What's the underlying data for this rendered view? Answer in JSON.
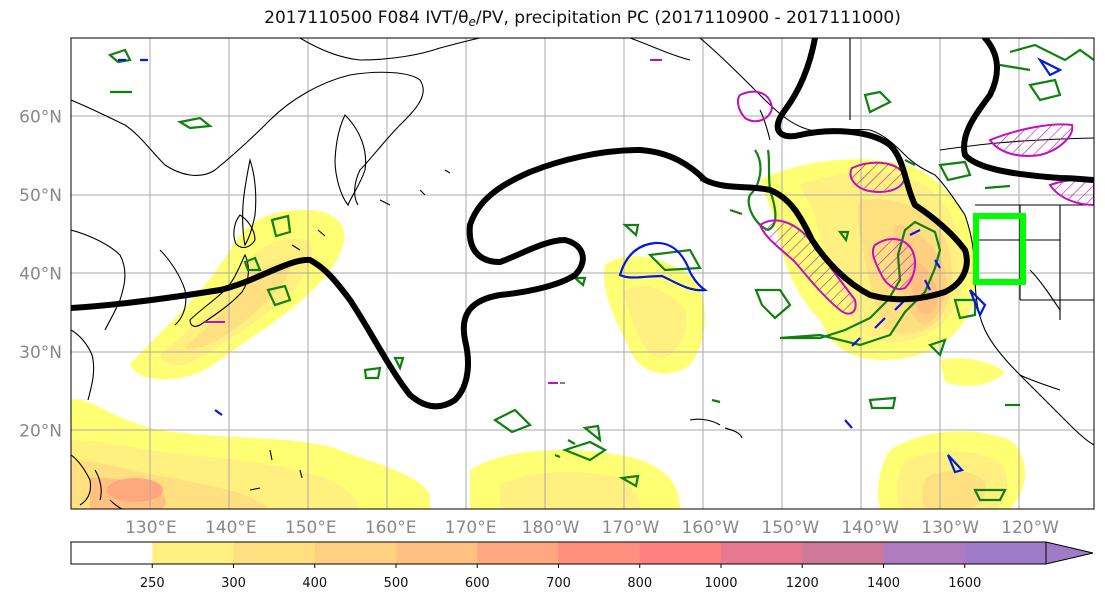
{
  "title": {
    "prefix": "2017110500 F084 IVT/θ",
    "subscript": "e",
    "suffix": "/PV, precipitation PC (2017110900 - 2017111000)"
  },
  "axes": {
    "lat_labels": [
      "60°N",
      "50°N",
      "40°N",
      "30°N",
      "20°N"
    ],
    "lat_values": [
      60,
      50,
      40,
      30,
      20
    ],
    "lon_labels": [
      "130°E",
      "140°E",
      "150°E",
      "160°E",
      "170°E",
      "180°W",
      "170°W",
      "160°W",
      "150°W",
      "140°W",
      "130°W",
      "120°W"
    ],
    "lon_values": [
      130,
      140,
      150,
      160,
      170,
      180,
      190,
      200,
      210,
      220,
      230,
      240
    ],
    "lon_range": [
      120,
      248
    ],
    "lat_range": [
      10,
      70
    ],
    "grid": true
  },
  "colorbar": {
    "levels": [
      "250",
      "300",
      "400",
      "500",
      "600",
      "700",
      "800",
      "1000",
      "1200",
      "1400",
      "1600"
    ],
    "colors": [
      "#ffff74",
      "#fff080",
      "#ffe080",
      "#ffd080",
      "#ffc080",
      "#ffa880",
      "#ff9080",
      "#ff8080",
      "#e87890",
      "#d07898",
      "#b07cc0",
      "#a07cc8"
    ],
    "extend": "max"
  },
  "colors": {
    "jet_line": "#000000",
    "green_contour": "#108010",
    "blue_contour": "#0018e0",
    "pv_contour": "#c010c0",
    "target_box": "#00ff00"
  }
}
